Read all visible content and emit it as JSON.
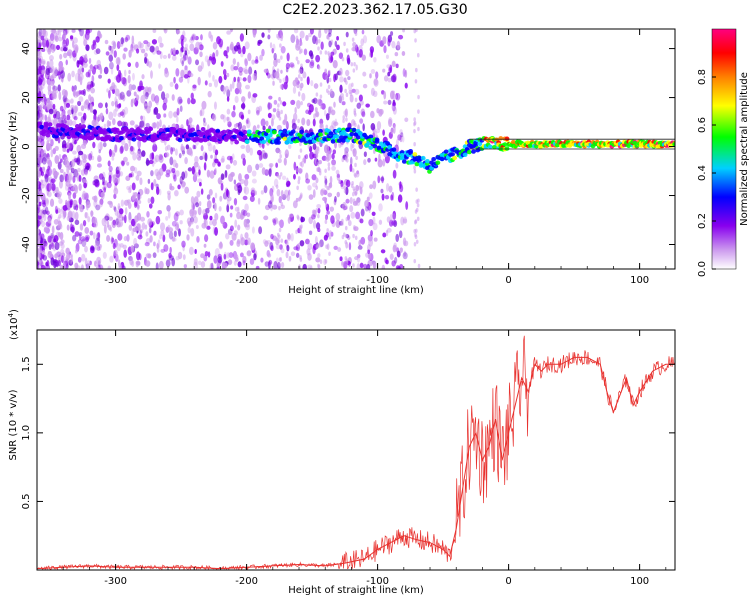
{
  "title": "C2E2.2023.362.17.05.G30",
  "chart_data": [
    {
      "type": "heatmap",
      "xlabel": "Height of straight line (km)",
      "ylabel": "Frequency (Hz)",
      "xlim": [
        -360,
        127
      ],
      "ylim": [
        -50,
        48
      ],
      "xticks": [
        -300,
        -200,
        -100,
        0,
        100
      ],
      "yticks": [
        -40,
        -20,
        0,
        20,
        40
      ],
      "xtick_labels": [
        "-300",
        "-200",
        "-100",
        "0",
        "100"
      ],
      "ytick_labels": [
        "-40",
        "-20",
        "0",
        "20",
        "40"
      ],
      "colorbar": {
        "label": "Normalized spectral amplitude",
        "range": [
          0.0,
          1.0
        ],
        "ticks": [
          0.0,
          0.2,
          0.4,
          0.6,
          0.8
        ],
        "tick_labels": [
          "0.0",
          "0.2",
          "0.4",
          "0.6",
          "0.8"
        ],
        "colors": [
          "#ffffff",
          "#cc99ee",
          "#8800ee",
          "#0000ff",
          "#00d0ff",
          "#00ff00",
          "#ffff00",
          "#ff8000",
          "#ff0000",
          "#ff0080"
        ]
      },
      "ridge": {
        "x": [
          -355,
          -330,
          -300,
          -250,
          -200,
          -150,
          -120,
          -100,
          -85,
          -70,
          -60,
          -50,
          -40,
          -30,
          -20,
          0,
          50,
          100,
          127
        ],
        "y": [
          7,
          6,
          5,
          5,
          4,
          4,
          5,
          1,
          -3,
          -5,
          -8,
          -5,
          -3,
          0,
          1,
          1,
          1,
          1,
          1
        ]
      },
      "grid": false
    },
    {
      "type": "line",
      "xlabel": "Height of straight line (km)",
      "ylabel": "SNR (10 * v/v)",
      "yscale_label": "(x10",
      "yscale_exp": "4",
      "yscale_close": ")",
      "xlim": [
        -360,
        127
      ],
      "ylim": [
        0,
        1.75
      ],
      "xticks": [
        -300,
        -200,
        -100,
        0,
        100
      ],
      "yticks": [
        0.5,
        1.0,
        1.5
      ],
      "xtick_labels": [
        "-300",
        "-200",
        "-100",
        "0",
        "100"
      ],
      "ytick_labels": [
        "0.5",
        "1.0",
        "1.5"
      ],
      "color": "#e8322f",
      "x": [
        -360,
        -340,
        -320,
        -300,
        -280,
        -260,
        -240,
        -220,
        -200,
        -180,
        -160,
        -140,
        -125,
        -110,
        -100,
        -90,
        -80,
        -70,
        -60,
        -50,
        -45,
        -40,
        -35,
        -30,
        -25,
        -20,
        -15,
        -10,
        -5,
        0,
        5,
        10,
        15,
        20,
        25,
        30,
        40,
        50,
        60,
        70,
        75,
        80,
        90,
        95,
        100,
        110,
        120,
        127
      ],
      "y": [
        0.01,
        0.02,
        0.03,
        0.02,
        0.02,
        0.02,
        0.02,
        0.01,
        0.02,
        0.03,
        0.04,
        0.03,
        0.05,
        0.08,
        0.15,
        0.2,
        0.25,
        0.22,
        0.2,
        0.15,
        0.1,
        0.3,
        0.6,
        0.9,
        1.0,
        0.8,
        0.9,
        1.1,
        0.8,
        1.0,
        1.2,
        1.4,
        1.3,
        1.5,
        1.45,
        1.5,
        1.5,
        1.55,
        1.55,
        1.5,
        1.3,
        1.15,
        1.4,
        1.2,
        1.3,
        1.45,
        1.5,
        1.5
      ]
    }
  ]
}
